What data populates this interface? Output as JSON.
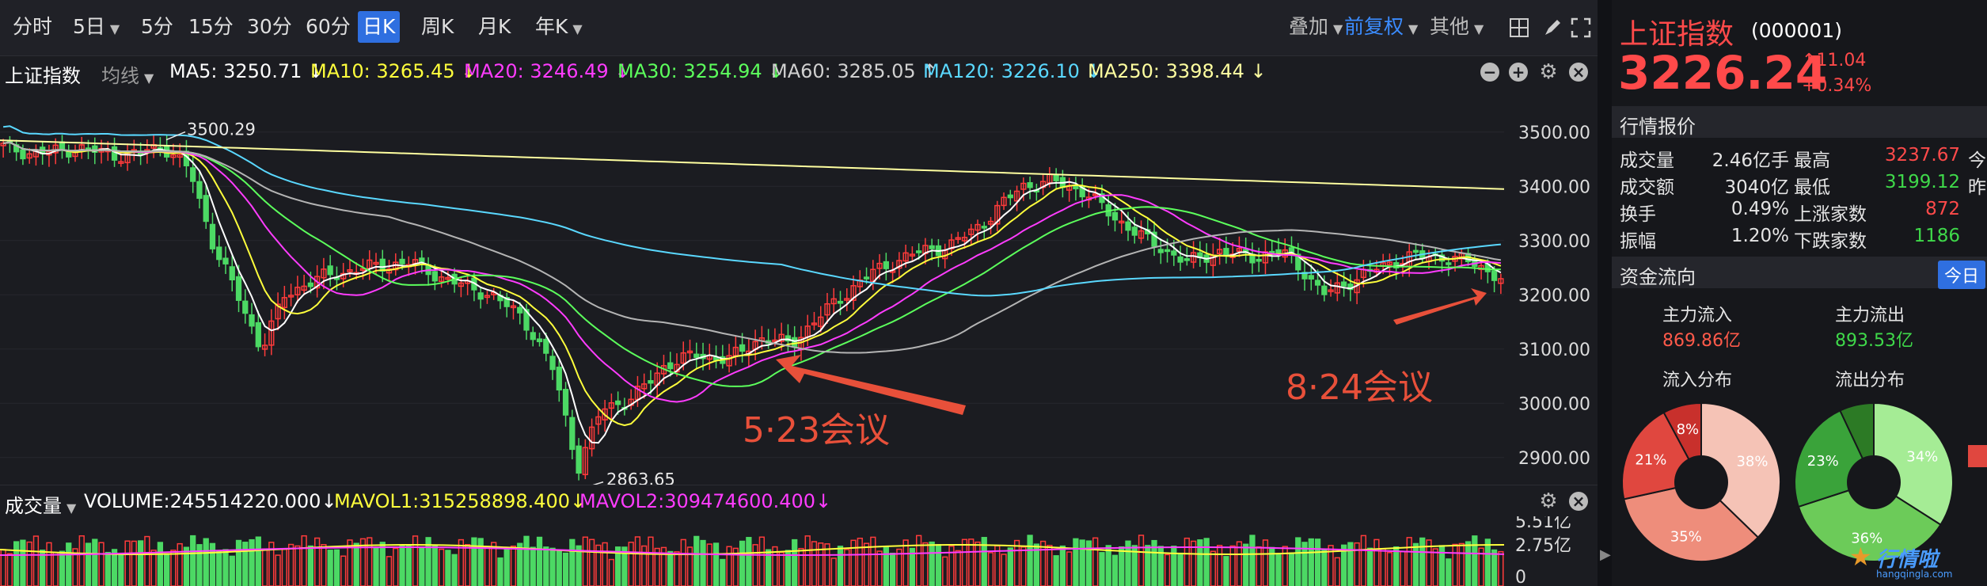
{
  "toolbar": {
    "tabs": [
      "分时",
      "5日",
      "5分",
      "15分",
      "30分",
      "60分",
      "日K",
      "周K",
      "月K",
      "年K"
    ],
    "active_tab": "日K",
    "overlay": "叠加",
    "adjust": "前复权",
    "other": "其他"
  },
  "ma_bar": {
    "index_name": "上证指数",
    "line_type": "均线",
    "ma5": "MA5: 3250.71 ↓",
    "ma10": "MA10: 3265.45 ↓",
    "ma20": "MA20: 3246.49 ↓",
    "ma30": "MA30: 3254.94 ↓",
    "ma60": "MA60: 3285.05 ↑",
    "ma120": "MA120: 3226.10 ↓",
    "ma250": "MA250: 3398.44 ↓"
  },
  "colors": {
    "ma5": "#ffffff",
    "ma10": "#ffff3c",
    "ma20": "#ff3cff",
    "ma30": "#5cff5c",
    "ma60": "#b4b4b4",
    "ma120": "#5ad8ff",
    "ma250": "#ffffa0",
    "up": "#ff3b3b",
    "down": "#4cd964",
    "annotation": "#e8503a"
  },
  "chart": {
    "y_ticks": [
      "3500.00",
      "3400.00",
      "3300.00",
      "3200.00",
      "3100.00",
      "3000.00",
      "2900.00"
    ],
    "high_label": "3500.29",
    "low_label": "2863.65",
    "annotation_1": "5·23会议",
    "annotation_2": "8·24会议"
  },
  "chart_data": {
    "type": "candlestick",
    "ylim": [
      2850,
      3580
    ],
    "y_ticks": [
      3500,
      3400,
      3300,
      3200,
      3100,
      3000,
      2900
    ],
    "high": 3500.29,
    "low": 2863.65,
    "last_close": 3226.24
  },
  "volume": {
    "label": "成交量",
    "volume": "VOLUME:245514220.000↓",
    "mavol1": "MAVOL1:315258898.400↓",
    "mavol2": "MAVOL2:309474600.400↓",
    "ticks": [
      "5.51亿",
      "2.75亿",
      "0"
    ]
  },
  "quote": {
    "name": "上证指数",
    "code": "(000001)",
    "price": "3226.24",
    "change": "11.04",
    "change_pct": "+0.34%",
    "section_title": "行情报价",
    "rows": [
      {
        "l1": "成交量",
        "v1": "2.46亿手",
        "l2": "最高",
        "v2": "3237.67",
        "c2": "red",
        "l3": "今"
      },
      {
        "l1": "成交额",
        "v1": "3040亿",
        "l2": "最低",
        "v2": "3199.12",
        "c2": "green",
        "l3": "昨"
      },
      {
        "l1": "换手",
        "v1": "0.49%",
        "l2": "上涨家数",
        "v2": "872",
        "c2": "red",
        "l3": ""
      },
      {
        "l1": "振幅",
        "v1": "1.20%",
        "l2": "下跌家数",
        "v2": "1186",
        "c2": "green",
        "l3": ""
      }
    ]
  },
  "fund_flow": {
    "title": "资金流向",
    "today": "今日",
    "inflow_label": "主力流入",
    "inflow_value": "869.86亿",
    "outflow_label": "主力流出",
    "outflow_value": "893.53亿",
    "in_dist_label": "流入分布",
    "out_dist_label": "流出分布",
    "in_pie": [
      {
        "label": "38%",
        "value": 38,
        "color": "#f5c3b6"
      },
      {
        "label": "35%",
        "value": 35,
        "color": "#ee8d7b"
      },
      {
        "label": "21%",
        "value": 21,
        "color": "#e0473f"
      },
      {
        "label": "8%",
        "value": 8,
        "color": "#c8302c"
      }
    ],
    "out_pie": [
      {
        "label": "34%",
        "value": 34,
        "color": "#a5ec95"
      },
      {
        "label": "36%",
        "value": 36,
        "color": "#6ccb59"
      },
      {
        "label": "23%",
        "value": 23,
        "color": "#3aa33a"
      },
      {
        "label": "",
        "value": 7,
        "color": "#2c7a25"
      }
    ],
    "watermark": "行情啦",
    "watermark_url": "hangqingla.com"
  }
}
